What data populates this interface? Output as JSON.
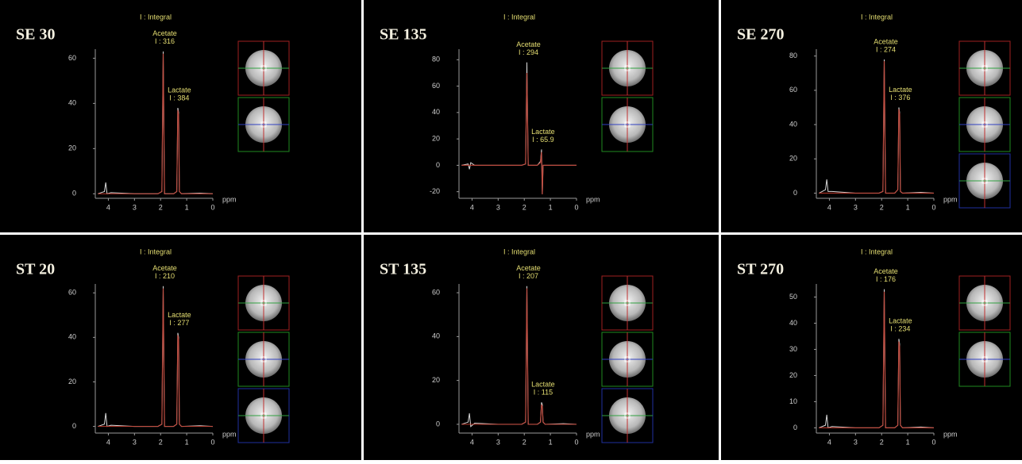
{
  "chart_data": [
    {
      "type": "line",
      "title": "SE 30",
      "subtitle": "I : Integral",
      "xlabel": "ppm",
      "x": [
        4.4,
        4.15,
        4.1,
        4.05,
        3.9,
        3.0,
        2.1,
        1.95,
        1.9,
        1.85,
        1.5,
        1.38,
        1.34,
        1.31,
        1.28,
        1.2,
        0.5,
        0
      ],
      "xlim": [
        4.5,
        0
      ],
      "xticks": [
        4,
        3,
        2,
        1,
        0
      ],
      "ylim": [
        -2,
        64
      ],
      "yticks": [
        0,
        20,
        40,
        60
      ],
      "series": [
        {
          "color": "#d8d8d8",
          "values": [
            0,
            1,
            5,
            0,
            0.5,
            0,
            0,
            1,
            63,
            0,
            0,
            1,
            38,
            36,
            1,
            0,
            0.3,
            0
          ]
        },
        {
          "color": "#c0392b",
          "values": [
            0,
            0,
            0,
            0,
            0,
            0,
            0,
            1,
            62,
            0,
            0,
            1,
            37,
            35,
            1,
            0,
            0,
            0
          ]
        }
      ],
      "annotations": [
        {
          "name": "Acetate",
          "integral": "I : 316",
          "x": 1.9
        },
        {
          "name": "Lactate",
          "integral": "I : 384",
          "x": 1.34
        }
      ],
      "localizer_colors": [
        "#a02020",
        "#208a20"
      ]
    },
    {
      "type": "line",
      "title": "SE 135",
      "subtitle": "I : Integral",
      "xlabel": "ppm",
      "x": [
        4.4,
        4.15,
        4.1,
        4.05,
        3.9,
        3.0,
        2.1,
        1.95,
        1.9,
        1.85,
        1.5,
        1.38,
        1.34,
        1.31,
        1.28,
        1.2,
        0.5,
        0
      ],
      "xlim": [
        4.5,
        0
      ],
      "xticks": [
        4,
        3,
        2,
        1,
        0
      ],
      "ylim": [
        -25,
        88
      ],
      "yticks": [
        -20,
        0,
        20,
        40,
        60,
        80
      ],
      "series": [
        {
          "color": "#d8d8d8",
          "values": [
            0,
            1,
            -3,
            2,
            0,
            0,
            0,
            1,
            78,
            0,
            0,
            3,
            12,
            -22,
            0,
            0,
            0,
            0
          ]
        },
        {
          "color": "#c0392b",
          "values": [
            0,
            0,
            0,
            0,
            0,
            0,
            0,
            1,
            70,
            0,
            0,
            2,
            10,
            -22,
            0,
            0,
            0,
            0
          ]
        }
      ],
      "annotations": [
        {
          "name": "Acetate",
          "integral": "I : 294",
          "x": 1.9
        },
        {
          "name": "Lactate",
          "integral": "I : 65.9",
          "x": 1.34
        }
      ],
      "localizer_colors": [
        "#a02020",
        "#208a20"
      ]
    },
    {
      "type": "line",
      "title": "SE 270",
      "subtitle": "I : Integral",
      "xlabel": "ppm",
      "x": [
        4.4,
        4.15,
        4.1,
        4.05,
        3.9,
        3.0,
        2.1,
        1.95,
        1.9,
        1.85,
        1.5,
        1.38,
        1.34,
        1.31,
        1.28,
        1.2,
        0.5,
        0
      ],
      "xlim": [
        4.5,
        0
      ],
      "xticks": [
        4,
        3,
        2,
        1,
        0
      ],
      "ylim": [
        -3,
        84
      ],
      "yticks": [
        0,
        20,
        40,
        60,
        80
      ],
      "series": [
        {
          "color": "#d8d8d8",
          "values": [
            0,
            2,
            8,
            1,
            1,
            0,
            0,
            1,
            78,
            0,
            0,
            2,
            50,
            47,
            1,
            0,
            0.5,
            0
          ]
        },
        {
          "color": "#c0392b",
          "values": [
            0,
            0,
            0,
            0,
            0,
            0,
            0,
            1,
            77,
            0,
            0,
            2,
            49,
            46,
            1,
            0,
            0,
            0
          ]
        }
      ],
      "annotations": [
        {
          "name": "Acetate",
          "integral": "I : 274",
          "x": 1.9
        },
        {
          "name": "Lactate",
          "integral": "I : 376",
          "x": 1.34
        }
      ],
      "localizer_colors": [
        "#a02020",
        "#208a20",
        "#2030a0"
      ]
    },
    {
      "type": "line",
      "title": "ST 20",
      "subtitle": "I : Integral",
      "xlabel": "ppm",
      "x": [
        4.4,
        4.15,
        4.1,
        4.05,
        3.9,
        3.0,
        2.1,
        1.95,
        1.9,
        1.85,
        1.5,
        1.38,
        1.34,
        1.31,
        1.28,
        1.2,
        0.5,
        0
      ],
      "xlim": [
        4.5,
        0
      ],
      "xticks": [
        4,
        3,
        2,
        1,
        0
      ],
      "ylim": [
        -3,
        64
      ],
      "yticks": [
        0,
        20,
        40,
        60
      ],
      "series": [
        {
          "color": "#d8d8d8",
          "values": [
            0,
            1,
            6,
            0,
            0.5,
            0,
            0,
            1,
            63,
            0,
            0,
            1,
            42,
            40,
            1,
            0,
            0.3,
            0
          ]
        },
        {
          "color": "#c0392b",
          "values": [
            0,
            0,
            0,
            0,
            0,
            0,
            0,
            1,
            62,
            0,
            0,
            1,
            41,
            39,
            1,
            0,
            0,
            0
          ]
        }
      ],
      "annotations": [
        {
          "name": "Acetate",
          "integral": "I : 210",
          "x": 1.9
        },
        {
          "name": "Lactate",
          "integral": "I : 277",
          "x": 1.34
        }
      ],
      "localizer_colors": [
        "#a02020",
        "#208a20",
        "#2030a0"
      ]
    },
    {
      "type": "line",
      "title": "ST 135",
      "subtitle": "I : Integral",
      "xlabel": "ppm",
      "x": [
        4.4,
        4.15,
        4.1,
        4.05,
        3.9,
        3.0,
        2.1,
        1.95,
        1.9,
        1.85,
        1.5,
        1.38,
        1.34,
        1.31,
        1.28,
        1.2,
        0.5,
        0
      ],
      "xlim": [
        4.5,
        0
      ],
      "xticks": [
        4,
        3,
        2,
        1,
        0
      ],
      "ylim": [
        -4,
        64
      ],
      "yticks": [
        0,
        20,
        40,
        60
      ],
      "series": [
        {
          "color": "#d8d8d8",
          "values": [
            0,
            1,
            5,
            -1,
            0.5,
            0,
            0,
            1,
            63,
            0,
            0,
            1,
            10,
            9,
            1,
            0,
            0.3,
            0
          ]
        },
        {
          "color": "#c0392b",
          "values": [
            0,
            0,
            0,
            0,
            0,
            0,
            0,
            1,
            62,
            0,
            0,
            1,
            9,
            8,
            1,
            0,
            0,
            0
          ]
        }
      ],
      "annotations": [
        {
          "name": "Acetate",
          "integral": "I : 207",
          "x": 1.9
        },
        {
          "name": "Lactate",
          "integral": "I : 115",
          "x": 1.34
        }
      ],
      "localizer_colors": [
        "#a02020",
        "#208a20",
        "#2030a0"
      ]
    },
    {
      "type": "line",
      "title": "ST 270",
      "subtitle": "I : Integral",
      "xlabel": "ppm",
      "x": [
        4.4,
        4.15,
        4.1,
        4.05,
        3.9,
        3.0,
        2.1,
        1.95,
        1.9,
        1.85,
        1.5,
        1.38,
        1.34,
        1.31,
        1.28,
        1.2,
        0.5,
        0
      ],
      "xlim": [
        4.5,
        0
      ],
      "xticks": [
        4,
        3,
        2,
        1,
        0
      ],
      "ylim": [
        -2,
        55
      ],
      "yticks": [
        0,
        10,
        20,
        30,
        40,
        50
      ],
      "series": [
        {
          "color": "#d8d8d8",
          "values": [
            0,
            1,
            5,
            0,
            0.5,
            0,
            0,
            1,
            53,
            0,
            0,
            1,
            34,
            32,
            1,
            0,
            0.3,
            0
          ]
        },
        {
          "color": "#c0392b",
          "values": [
            0,
            0,
            0,
            0,
            0,
            0,
            0,
            1,
            52,
            0,
            0,
            1,
            33,
            31,
            1,
            0,
            0,
            0
          ]
        }
      ],
      "annotations": [
        {
          "name": "Acetate",
          "integral": "I : 176",
          "x": 1.9
        },
        {
          "name": "Lactate",
          "integral": "I : 234",
          "x": 1.34
        }
      ],
      "localizer_colors": [
        "#a02020",
        "#208a20"
      ]
    }
  ]
}
